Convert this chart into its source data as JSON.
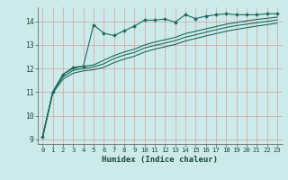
{
  "xlabel": "Humidex (Indice chaleur)",
  "bg_color": "#cceaea",
  "grid_color": "#b8d8d8",
  "line_color": "#1a6b5a",
  "xlim": [
    -0.5,
    23.5
  ],
  "ylim": [
    8.8,
    14.6
  ],
  "yticks": [
    9,
    10,
    11,
    12,
    13,
    14
  ],
  "xticks": [
    0,
    1,
    2,
    3,
    4,
    5,
    6,
    7,
    8,
    9,
    10,
    11,
    12,
    13,
    14,
    15,
    16,
    17,
    18,
    19,
    20,
    21,
    22,
    23
  ],
  "series1_x": [
    0,
    1,
    2,
    3,
    4,
    5,
    6,
    7,
    8,
    9,
    10,
    11,
    12,
    13,
    14,
    15,
    16,
    17,
    18,
    19,
    20,
    21,
    22,
    23
  ],
  "series1_y": [
    9.1,
    11.0,
    11.75,
    12.05,
    12.1,
    13.85,
    13.5,
    13.4,
    13.6,
    13.8,
    14.05,
    14.05,
    14.1,
    13.97,
    14.28,
    14.12,
    14.22,
    14.28,
    14.32,
    14.28,
    14.28,
    14.28,
    14.32,
    14.32
  ],
  "series2_x": [
    0,
    1,
    2,
    3,
    4,
    5,
    6,
    7,
    8,
    9,
    10,
    11,
    12,
    13,
    14,
    15,
    16,
    17,
    18,
    19,
    20,
    21,
    22,
    23
  ],
  "series2_y": [
    9.1,
    11.0,
    11.75,
    12.0,
    12.1,
    12.15,
    12.35,
    12.55,
    12.7,
    12.82,
    13.0,
    13.12,
    13.22,
    13.32,
    13.48,
    13.58,
    13.68,
    13.78,
    13.88,
    13.95,
    14.02,
    14.08,
    14.13,
    14.18
  ],
  "series3_x": [
    0,
    1,
    2,
    3,
    4,
    5,
    6,
    7,
    8,
    9,
    10,
    11,
    12,
    13,
    14,
    15,
    16,
    17,
    18,
    19,
    20,
    21,
    22,
    23
  ],
  "series3_y": [
    9.1,
    11.0,
    11.65,
    11.92,
    12.0,
    12.07,
    12.2,
    12.42,
    12.57,
    12.68,
    12.87,
    12.98,
    13.08,
    13.18,
    13.33,
    13.43,
    13.54,
    13.64,
    13.74,
    13.82,
    13.88,
    13.94,
    14.0,
    14.06
  ],
  "series4_x": [
    0,
    1,
    2,
    3,
    4,
    5,
    6,
    7,
    8,
    9,
    10,
    11,
    12,
    13,
    14,
    15,
    16,
    17,
    18,
    19,
    20,
    21,
    22,
    23
  ],
  "series4_y": [
    9.05,
    10.95,
    11.55,
    11.8,
    11.9,
    11.95,
    12.05,
    12.25,
    12.4,
    12.52,
    12.7,
    12.82,
    12.92,
    13.02,
    13.17,
    13.27,
    13.38,
    13.48,
    13.58,
    13.66,
    13.73,
    13.8,
    13.86,
    13.92
  ]
}
